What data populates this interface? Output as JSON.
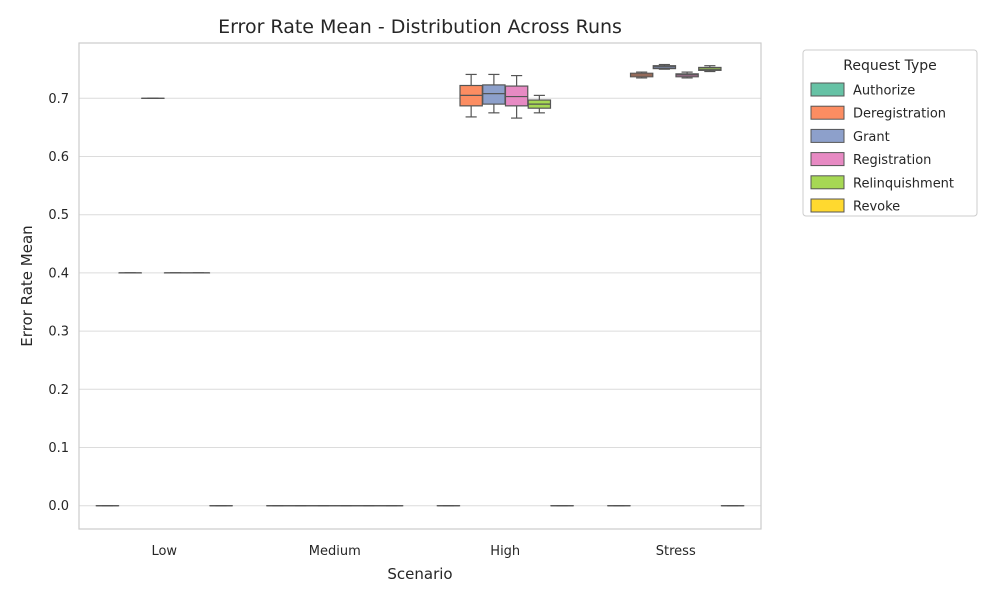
{
  "chart_data": {
    "type": "box",
    "title": "Error Rate Mean - Distribution Across Runs",
    "xlabel": "Scenario",
    "ylabel": "Error Rate Mean",
    "ylim": [
      -0.04,
      0.795
    ],
    "yticks": [
      "0.0",
      "0.1",
      "0.2",
      "0.3",
      "0.4",
      "0.5",
      "0.6",
      "0.7"
    ],
    "grid": true,
    "categories": [
      "Low",
      "Medium",
      "High",
      "Stress"
    ],
    "legend": {
      "title": "Request Type",
      "placement": "outside-top-right"
    },
    "series": [
      {
        "name": "Authorize",
        "color": "#66c2a5",
        "boxes": [
          {
            "min": 0.0,
            "q1": 0.0,
            "median": 0.0,
            "q3": 0.0,
            "max": 0.0
          },
          {
            "min": 0.0,
            "q1": 0.0,
            "median": 0.0,
            "q3": 0.0,
            "max": 0.0
          },
          {
            "min": 0.0,
            "q1": 0.0,
            "median": 0.0,
            "q3": 0.0,
            "max": 0.0
          },
          {
            "min": 0.0,
            "q1": 0.0,
            "median": 0.0,
            "q3": 0.0,
            "max": 0.0
          }
        ]
      },
      {
        "name": "Deregistration",
        "color": "#fc8d62",
        "boxes": [
          {
            "min": 0.4,
            "q1": 0.4,
            "median": 0.4,
            "q3": 0.4,
            "max": 0.4
          },
          {
            "min": 0.0,
            "q1": 0.0,
            "median": 0.0,
            "q3": 0.0,
            "max": 0.0
          },
          {
            "min": 0.668,
            "q1": 0.687,
            "median": 0.705,
            "q3": 0.722,
            "max": 0.741
          },
          {
            "min": 0.735,
            "q1": 0.737,
            "median": 0.74,
            "q3": 0.743,
            "max": 0.745
          }
        ]
      },
      {
        "name": "Grant",
        "color": "#8da0cb",
        "boxes": [
          {
            "min": 0.7,
            "q1": 0.7,
            "median": 0.7,
            "q3": 0.7,
            "max": 0.7
          },
          {
            "min": 0.0,
            "q1": 0.0,
            "median": 0.0,
            "q3": 0.0,
            "max": 0.0
          },
          {
            "min": 0.675,
            "q1": 0.69,
            "median": 0.708,
            "q3": 0.723,
            "max": 0.741
          },
          {
            "min": 0.75,
            "q1": 0.751,
            "median": 0.754,
            "q3": 0.756,
            "max": 0.758
          }
        ]
      },
      {
        "name": "Registration",
        "color": "#e78ac3",
        "boxes": [
          {
            "min": 0.4,
            "q1": 0.4,
            "median": 0.4,
            "q3": 0.4,
            "max": 0.4
          },
          {
            "min": 0.0,
            "q1": 0.0,
            "median": 0.0,
            "q3": 0.0,
            "max": 0.0
          },
          {
            "min": 0.666,
            "q1": 0.687,
            "median": 0.703,
            "q3": 0.721,
            "max": 0.739
          },
          {
            "min": 0.735,
            "q1": 0.737,
            "median": 0.74,
            "q3": 0.742,
            "max": 0.745
          }
        ]
      },
      {
        "name": "Relinquishment",
        "color": "#a6d854",
        "boxes": [
          {
            "min": 0.4,
            "q1": 0.4,
            "median": 0.4,
            "q3": 0.4,
            "max": 0.4
          },
          {
            "min": 0.0,
            "q1": 0.0,
            "median": 0.0,
            "q3": 0.0,
            "max": 0.0
          },
          {
            "min": 0.675,
            "q1": 0.683,
            "median": 0.69,
            "q3": 0.697,
            "max": 0.705
          },
          {
            "min": 0.746,
            "q1": 0.748,
            "median": 0.75,
            "q3": 0.753,
            "max": 0.756
          }
        ]
      },
      {
        "name": "Revoke",
        "color": "#ffd92f",
        "boxes": [
          {
            "min": 0.0,
            "q1": 0.0,
            "median": 0.0,
            "q3": 0.0,
            "max": 0.0
          },
          {
            "min": 0.0,
            "q1": 0.0,
            "median": 0.0,
            "q3": 0.0,
            "max": 0.0
          },
          {
            "min": 0.0,
            "q1": 0.0,
            "median": 0.0,
            "q3": 0.0,
            "max": 0.0
          },
          {
            "min": 0.0,
            "q1": 0.0,
            "median": 0.0,
            "q3": 0.0,
            "max": 0.0
          }
        ]
      }
    ]
  }
}
